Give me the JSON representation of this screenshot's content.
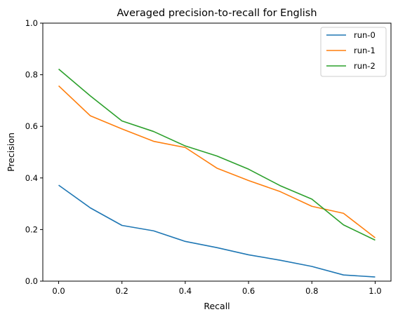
{
  "chart_data": {
    "type": "line",
    "title": "Averaged precision-to-recall for English",
    "xlabel": "Recall",
    "ylabel": "Precision",
    "xlim": [
      -0.05,
      1.05
    ],
    "ylim": [
      0,
      1
    ],
    "xticks": [
      "0.0",
      "0.2",
      "0.4",
      "0.6",
      "0.8",
      "1.0"
    ],
    "yticks": [
      "0.0",
      "0.2",
      "0.4",
      "0.6",
      "0.8",
      "1.0"
    ],
    "grid": false,
    "legend_position": "top-right",
    "x": [
      0.0,
      0.1,
      0.2,
      0.3,
      0.4,
      0.5,
      0.6,
      0.7,
      0.8,
      0.9,
      1.0
    ],
    "series": [
      {
        "name": "run-0",
        "color": "#1f77b4",
        "values": [
          0.372,
          0.284,
          0.216,
          0.195,
          0.154,
          0.13,
          0.102,
          0.081,
          0.057,
          0.024,
          0.016
        ]
      },
      {
        "name": "run-1",
        "color": "#ff7f0e",
        "values": [
          0.757,
          0.641,
          0.59,
          0.542,
          0.518,
          0.438,
          0.39,
          0.347,
          0.29,
          0.263,
          0.168
        ]
      },
      {
        "name": "run-2",
        "color": "#2ca02c",
        "values": [
          0.822,
          0.718,
          0.621,
          0.58,
          0.524,
          0.485,
          0.434,
          0.37,
          0.318,
          0.218,
          0.159
        ]
      }
    ]
  }
}
